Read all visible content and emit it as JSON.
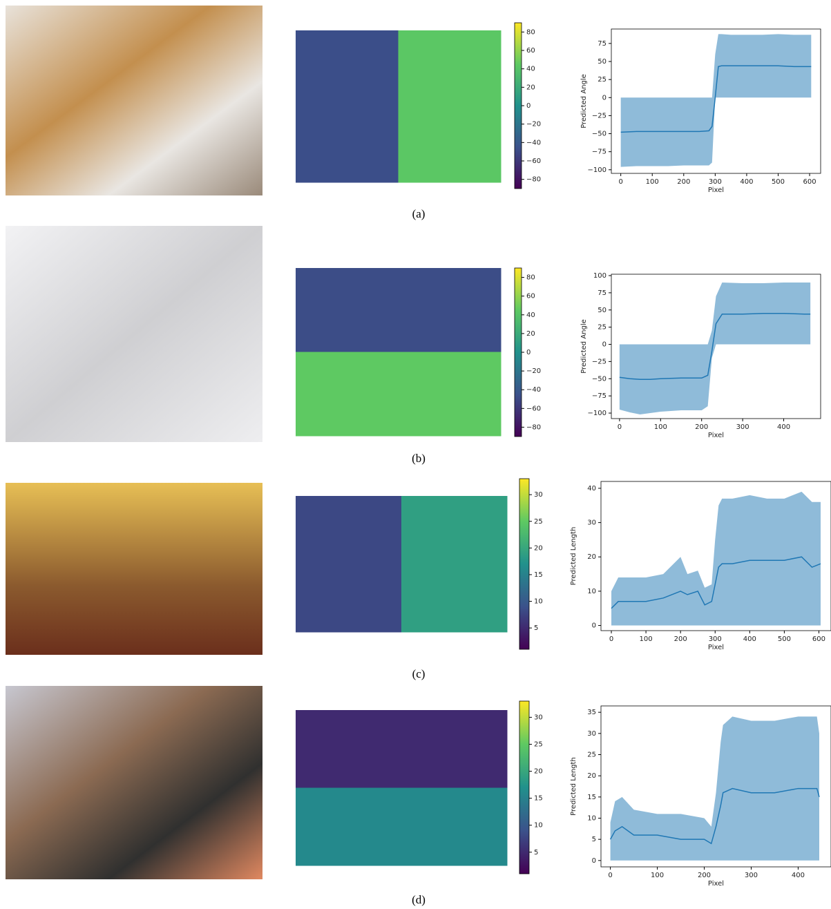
{
  "captions": [
    "(a)",
    "(b)",
    "(c)",
    "(d)"
  ],
  "chart_data": [
    {
      "type": "heatmap",
      "values": [
        [
          -47,
          43
        ]
      ],
      "clim": [
        -90,
        90
      ],
      "cticks": [
        {
          "value": -80,
          "label": "−80"
        },
        {
          "value": -60,
          "label": "−60"
        },
        {
          "value": -40,
          "label": "−40"
        },
        {
          "value": -20,
          "label": "−20"
        },
        0,
        20,
        40,
        60,
        80
      ]
    },
    {
      "type": "line",
      "xlabel": "Pixel",
      "ylabel": "Predicted Angle",
      "color": "#1f77b4",
      "x": [
        0,
        50,
        100,
        150,
        200,
        250,
        280,
        290,
        300,
        310,
        320,
        350,
        400,
        450,
        500,
        550,
        605
      ],
      "values": [
        -48,
        -47,
        -47,
        -47,
        -47,
        -47,
        -46,
        -40,
        0,
        43,
        44,
        44,
        44,
        44,
        44,
        43,
        43
      ],
      "lower": [
        -96,
        -95,
        -95,
        -95,
        -94,
        -94,
        -94,
        -90,
        0,
        0,
        0,
        0,
        0,
        0,
        0,
        0,
        0
      ],
      "upper": [
        0,
        0,
        0,
        0,
        0,
        0,
        0,
        0,
        60,
        88,
        88,
        87,
        87,
        87,
        88,
        87,
        87
      ],
      "xlim": [
        -30,
        635
      ],
      "ylim": [
        -105,
        95
      ],
      "xticks": [
        0,
        100,
        200,
        300,
        400,
        500,
        600
      ],
      "yticks": [
        {
          "value": -100,
          "label": "−100"
        },
        {
          "value": -75,
          "label": "−75"
        },
        {
          "value": -50,
          "label": "−50"
        },
        {
          "value": -25,
          "label": "−25"
        },
        0,
        25,
        50,
        75
      ]
    },
    {
      "type": "heatmap",
      "values": [
        [
          -48
        ],
        [
          45
        ]
      ],
      "clim": [
        -90,
        90
      ],
      "cticks": [
        {
          "value": -80,
          "label": "−80"
        },
        {
          "value": -60,
          "label": "−60"
        },
        {
          "value": -40,
          "label": "−40"
        },
        {
          "value": -20,
          "label": "−20"
        },
        0,
        20,
        40,
        60,
        80
      ]
    },
    {
      "type": "line",
      "xlabel": "Pixel",
      "ylabel": "Predicted Angle",
      "color": "#1f77b4",
      "x": [
        0,
        25,
        50,
        75,
        100,
        150,
        200,
        215,
        225,
        235,
        250,
        300,
        350,
        400,
        450,
        465
      ],
      "values": [
        -48,
        -50,
        -51,
        -51,
        -50,
        -49,
        -49,
        -45,
        -10,
        30,
        44,
        44,
        45,
        45,
        44,
        44
      ],
      "lower": [
        -95,
        -99,
        -102,
        -100,
        -98,
        -96,
        -96,
        -90,
        -20,
        0,
        0,
        0,
        0,
        0,
        0,
        0
      ],
      "upper": [
        0,
        0,
        0,
        0,
        0,
        0,
        0,
        0,
        20,
        70,
        90,
        89,
        89,
        90,
        90,
        90
      ],
      "xlim": [
        -20,
        490
      ],
      "ylim": [
        -108,
        102
      ],
      "xticks": [
        0,
        100,
        200,
        300,
        400
      ],
      "yticks": [
        {
          "value": -100,
          "label": "−100"
        },
        {
          "value": -75,
          "label": "−75"
        },
        {
          "value": -50,
          "label": "−50"
        },
        {
          "value": -25,
          "label": "−25"
        },
        0,
        25,
        50,
        75,
        100
      ]
    },
    {
      "type": "heatmap",
      "values": [
        [
          8,
          19
        ]
      ],
      "clim": [
        1,
        33
      ],
      "cticks": [
        5,
        10,
        15,
        20,
        25,
        30
      ]
    },
    {
      "type": "line",
      "xlabel": "Pixel",
      "ylabel": "Predicted Length",
      "color": "#1f77b4",
      "x": [
        0,
        20,
        50,
        100,
        150,
        200,
        220,
        250,
        270,
        290,
        300,
        310,
        320,
        350,
        400,
        450,
        500,
        550,
        580,
        605
      ],
      "values": [
        5,
        7,
        7,
        7,
        8,
        10,
        9,
        10,
        6,
        7,
        12,
        17,
        18,
        18,
        19,
        19,
        19,
        20,
        17,
        18
      ],
      "lower": [
        0,
        0,
        0,
        0,
        0,
        0,
        0,
        0,
        0,
        0,
        0,
        0,
        0,
        0,
        0,
        0,
        0,
        0,
        0,
        0
      ],
      "upper": [
        10,
        14,
        14,
        14,
        15,
        20,
        15,
        16,
        11,
        12,
        25,
        35,
        37,
        37,
        38,
        37,
        37,
        39,
        36,
        36
      ],
      "xlim": [
        -30,
        635
      ],
      "ylim": [
        -1.5,
        42
      ],
      "xticks": [
        0,
        100,
        200,
        300,
        400,
        500,
        600
      ],
      "yticks": [
        0,
        10,
        20,
        30,
        40
      ]
    },
    {
      "type": "heatmap",
      "values": [
        [
          5
        ],
        [
          16
        ]
      ],
      "clim": [
        1,
        33
      ],
      "cticks": [
        5,
        10,
        15,
        20,
        25,
        30
      ]
    },
    {
      "type": "line",
      "xlabel": "Pixel",
      "ylabel": "Predicted Length",
      "color": "#1f77b4",
      "x": [
        0,
        10,
        25,
        50,
        100,
        150,
        200,
        215,
        225,
        235,
        240,
        260,
        300,
        350,
        400,
        440,
        445
      ],
      "values": [
        5,
        7,
        8,
        6,
        6,
        5,
        5,
        4,
        8,
        13,
        16,
        17,
        16,
        16,
        17,
        17,
        15
      ],
      "lower": [
        0,
        0,
        0,
        0,
        0,
        0,
        0,
        0,
        0,
        0,
        0,
        0,
        0,
        0,
        0,
        0,
        0
      ],
      "upper": [
        9,
        14,
        15,
        12,
        11,
        11,
        10,
        8,
        16,
        28,
        32,
        34,
        33,
        33,
        34,
        34,
        30
      ],
      "xlim": [
        -20,
        470
      ],
      "ylim": [
        -1.5,
        36.5
      ],
      "xticks": [
        0,
        100,
        200,
        300,
        400
      ],
      "yticks": [
        0,
        5,
        10,
        15,
        20,
        25,
        30,
        35
      ]
    }
  ]
}
